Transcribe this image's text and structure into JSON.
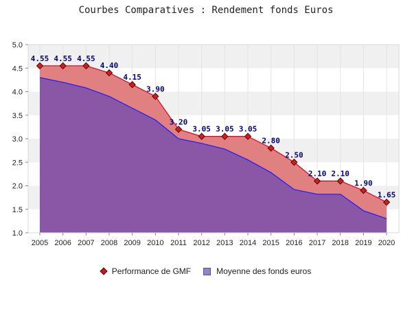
{
  "chart_data": {
    "type": "area",
    "title": "Courbes Comparatives : Rendement fonds Euros",
    "categories": [
      "2005",
      "2006",
      "2007",
      "2008",
      "2009",
      "2010",
      "2011",
      "2012",
      "2013",
      "2014",
      "2015",
      "2016",
      "2017",
      "2018",
      "2019",
      "2020"
    ],
    "ylim": [
      1.0,
      5.0
    ],
    "yticks": [
      "1.0",
      "1.5",
      "2.0",
      "2.5",
      "3.0",
      "3.5",
      "4.0",
      "4.5",
      "5.0"
    ],
    "grid": "alternating horizontal bands",
    "legend_position": "bottom",
    "series": [
      {
        "name": "Performance de GMF",
        "values": [
          4.55,
          4.55,
          4.55,
          4.4,
          4.15,
          3.9,
          3.2,
          3.05,
          3.05,
          3.05,
          2.8,
          2.5,
          2.1,
          2.1,
          1.9,
          1.65
        ],
        "labels": [
          "4.55",
          "4.55",
          "4.55",
          "4.40",
          "4.15",
          "3.90",
          "3.20",
          "3.05",
          "3.05",
          "3.05",
          "2.80",
          "2.50",
          "2.10",
          "2.10",
          "1.90",
          "1.65"
        ],
        "line_color": "#e0001a",
        "fill_color": "#e08080",
        "marker": "diamond"
      },
      {
        "name": "Moyenne des fonds euros",
        "values": [
          4.3,
          4.2,
          4.08,
          3.9,
          3.65,
          3.4,
          3.0,
          2.9,
          2.78,
          2.55,
          2.28,
          1.92,
          1.82,
          1.82,
          1.47,
          1.3
        ],
        "line_color": "#1a1aff",
        "fill_color": "#8a56a6"
      }
    ]
  }
}
